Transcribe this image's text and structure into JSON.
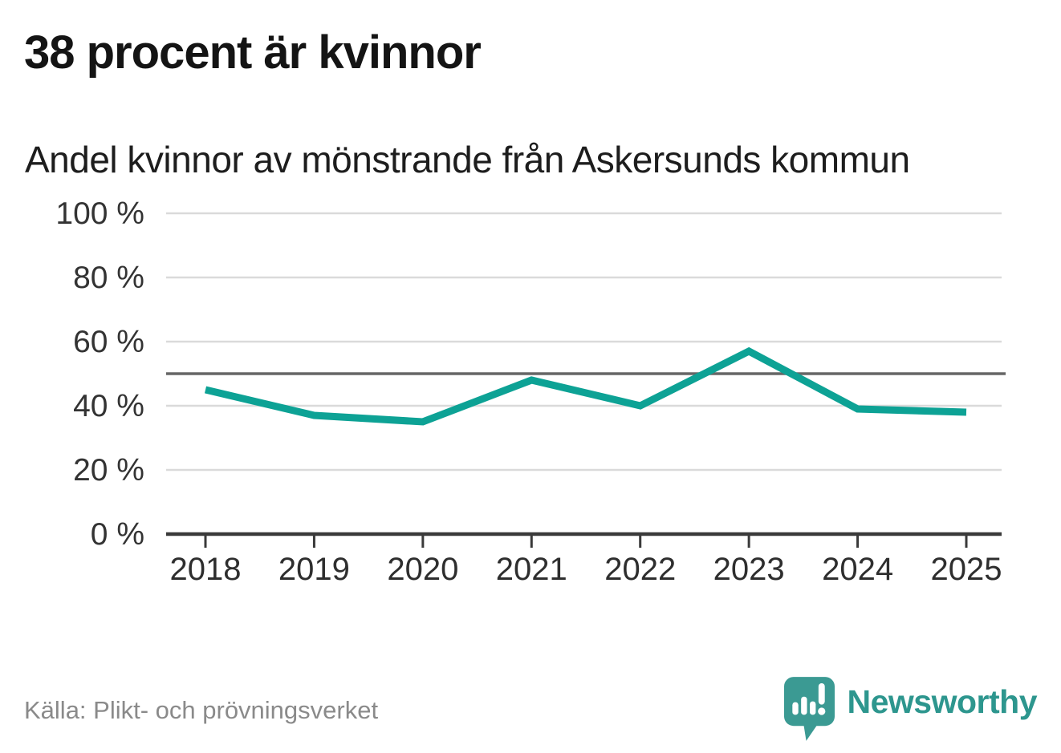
{
  "page": {
    "title": "38 procent är kvinnor",
    "subtitle": "Andel kvinnor av mönstrande från Askersunds kommun",
    "source": "Källa: Plikt- och prövningsverket",
    "brand_name": "Newsworthy"
  },
  "colors": {
    "line": "#0da295",
    "grid": "#dadada",
    "reference_line": "#666666",
    "axis": "#3a3a3a",
    "tick_text": "#333333",
    "title_text": "#141414",
    "source_text": "#8a8a8a",
    "brand_teal": "#2d968e",
    "brand_icon_teal": "#3b9a93"
  },
  "chart_data": {
    "type": "line",
    "title": "Andel kvinnor av mönstrande från Askersunds kommun",
    "categories": [
      "2018",
      "2019",
      "2020",
      "2021",
      "2022",
      "2023",
      "2024",
      "2025"
    ],
    "series": [
      {
        "name": "Andel kvinnor av mönstrande",
        "values": [
          45,
          37,
          35,
          48,
          40,
          57,
          39,
          38
        ]
      }
    ],
    "unit": "%",
    "ylim": [
      0,
      100
    ],
    "yticks": [
      0,
      20,
      40,
      60,
      80,
      100
    ],
    "ytick_labels": [
      "0 %",
      "20 %",
      "40 %",
      "60 %",
      "80 %",
      "100 %"
    ],
    "xlabel": "",
    "ylabel": "",
    "reference_line": 50,
    "grid": "horizontal",
    "legend": "none"
  }
}
